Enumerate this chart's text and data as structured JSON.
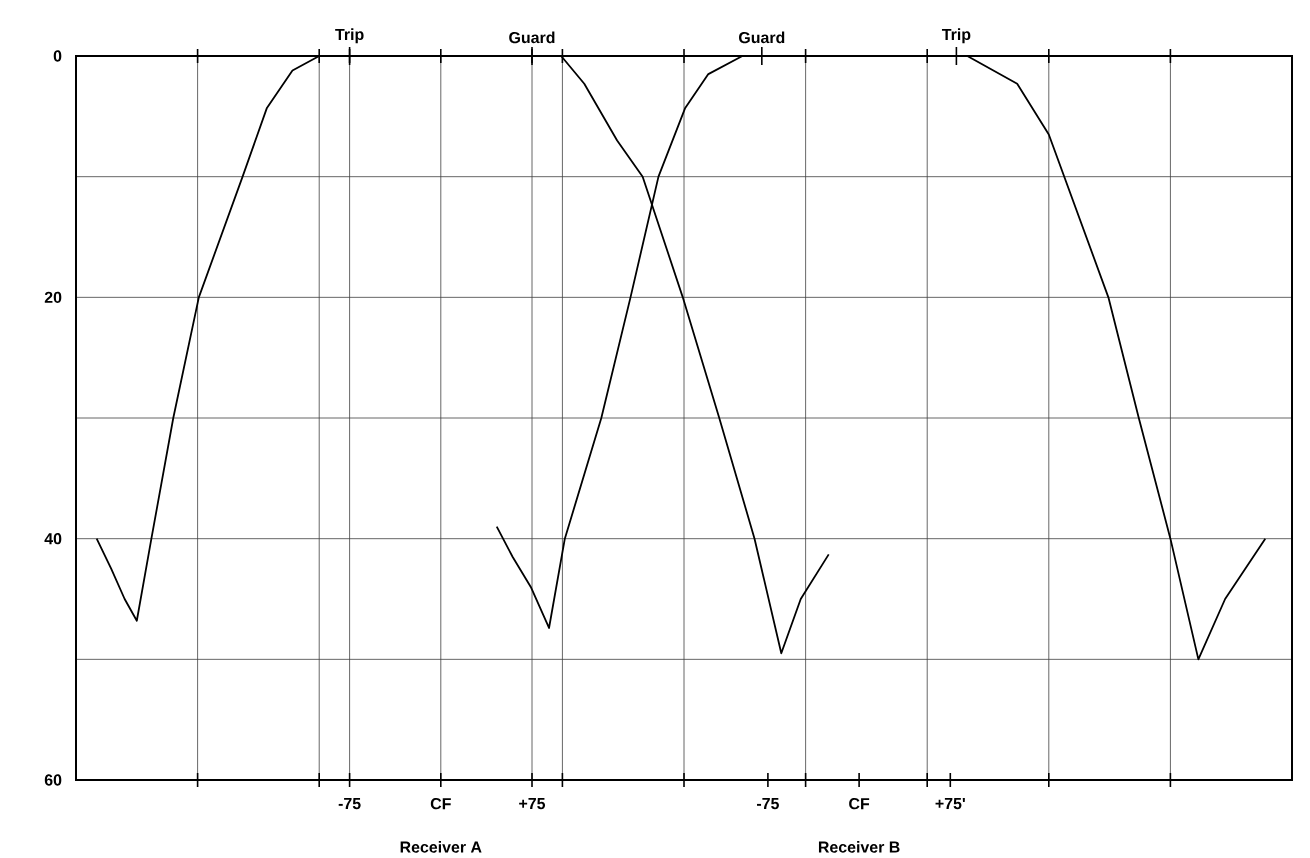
{
  "chart_data": {
    "type": "line",
    "xlim": [
      -300,
      700
    ],
    "ylim": [
      60,
      0
    ],
    "xticks": [
      {
        "value": -200,
        "label": null
      },
      {
        "value": -100,
        "label": null
      },
      -75,
      {
        "value": 0,
        "label": "CF"
      },
      {
        "value": 75,
        "label": "+75"
      },
      {
        "value": 100,
        "label": null
      },
      {
        "value": 200,
        "label": null
      },
      {
        "value": 300,
        "label": null
      },
      {
        "value": 400,
        "label": null
      },
      {
        "value": 500,
        "label": null
      },
      {
        "value": 600,
        "label": null
      }
    ],
    "yticks": [
      0,
      {
        "value": 10,
        "label": null
      },
      20,
      {
        "value": 30,
        "label": null
      },
      40,
      {
        "value": 50,
        "label": null
      },
      60
    ],
    "x2lim": [
      -644,
      356
    ],
    "x2ticks": [
      -75,
      {
        "value": 0,
        "label": "CF"
      },
      {
        "value": 75,
        "label": "+75'"
      }
    ],
    "grid": true,
    "marker": "none",
    "line_style": "solid",
    "annotations": [
      {
        "text": "Trip",
        "x": -75,
        "y": 0
      },
      {
        "text": "Guard",
        "x": 75,
        "y": 0
      },
      {
        "text": "Guard",
        "x": 264,
        "y": 0
      },
      {
        "text": "Trip",
        "x": 424,
        "y": 0
      },
      "Receiver A",
      "Receiver B"
    ],
    "series": [
      {
        "color": "#000000",
        "x": [
          -283,
          -271,
          -260,
          -250,
          -238,
          -220,
          -199,
          -163,
          -143,
          -122,
          -100,
          99,
          118,
          145,
          166,
          199,
          229,
          258,
          280,
          296,
          319
        ],
        "values": [
          40,
          42.5,
          45,
          46.8,
          40,
          30,
          20,
          10,
          4.3,
          1.2,
          0,
          0,
          2.3,
          7,
          10,
          20,
          30,
          40,
          49.5,
          45,
          41.3
        ]
      },
      {
        "color": "#000000",
        "x": [
          46,
          59,
          74,
          89,
          102,
          132,
          156,
          179,
          201,
          220,
          248,
          433,
          474,
          500,
          549,
          574,
          600,
          623,
          645,
          678
        ],
        "values": [
          39,
          41.5,
          44,
          47.4,
          40,
          30,
          20,
          10,
          4.3,
          1.5,
          0,
          0,
          2.3,
          6.5,
          20,
          30,
          40,
          50,
          45,
          40
        ]
      }
    ]
  }
}
